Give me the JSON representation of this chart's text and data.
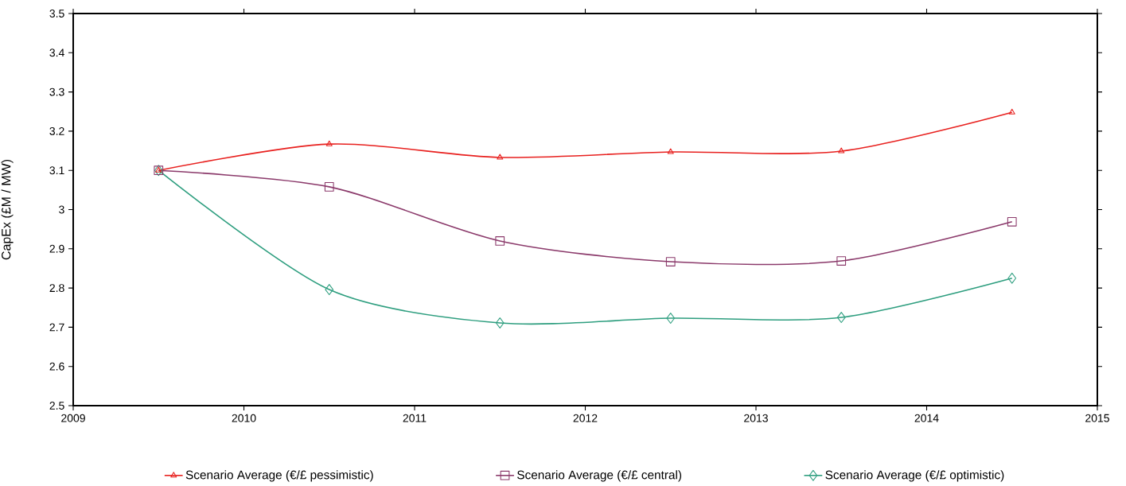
{
  "chart_data": {
    "type": "line",
    "ylabel": "CapEx (£M / MW)",
    "x": [
      2009.5,
      2010.5,
      2011.5,
      2012.5,
      2013.5,
      2014.5
    ],
    "series": [
      {
        "name": "Scenario Average (€/£ pessimistic)",
        "color": "#e8211f",
        "marker": "triangle",
        "values": [
          3.1,
          3.167,
          3.133,
          3.147,
          3.149,
          3.248
        ]
      },
      {
        "name": "Scenario Average (€/£ central)",
        "color": "#8b3a6b",
        "marker": "square",
        "values": [
          3.1,
          3.058,
          2.92,
          2.867,
          2.869,
          2.969
        ]
      },
      {
        "name": "Scenario Average (€/£ optimistic)",
        "color": "#2e9e7f",
        "marker": "diamond",
        "values": [
          3.1,
          2.796,
          2.711,
          2.723,
          2.725,
          2.825
        ]
      }
    ],
    "xlim": [
      2009,
      2015
    ],
    "xticks": [
      2009,
      2010,
      2011,
      2012,
      2013,
      2014,
      2015
    ],
    "ylim": [
      2.5,
      3.5
    ],
    "yticks": [
      2.5,
      2.6,
      2.7,
      2.8,
      2.9,
      3,
      3.1,
      3.2,
      3.3,
      3.4,
      3.5
    ],
    "grid": false,
    "legend": "bottom",
    "line_style": "solid"
  }
}
